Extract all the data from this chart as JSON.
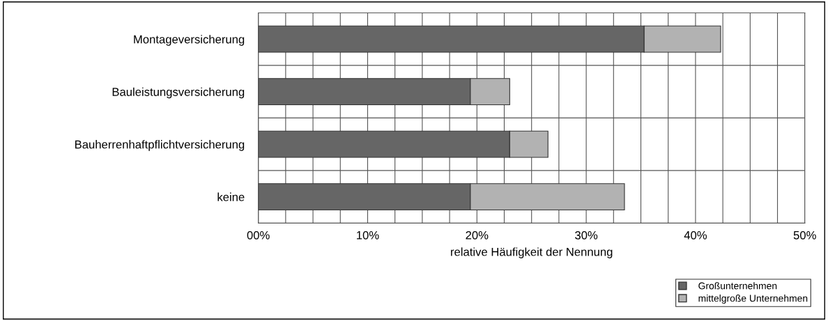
{
  "chart_data": {
    "type": "bar",
    "orientation": "horizontal",
    "stacked": true,
    "categories": [
      "Montageversicherung",
      "Bauleistungsversicherung",
      "Bauherrenhaftpflichtversicherung",
      "keine"
    ],
    "series": [
      {
        "name": "Großunternehmen",
        "color": "#666666",
        "values": [
          35.3,
          19.4,
          23.0,
          19.4
        ]
      },
      {
        "name": "mittelgroße Unternehmen",
        "color": "#b2b2b2",
        "values": [
          7.0,
          3.6,
          3.5,
          14.1
        ]
      }
    ],
    "xlabel": "relative Häufigkeit der Nennung",
    "xlim": [
      0,
      50
    ],
    "xticks": [
      {
        "value": 0,
        "label": "00%"
      },
      {
        "value": 2.5,
        "label": null
      },
      {
        "value": 5,
        "label": null
      },
      {
        "value": 7.5,
        "label": null
      },
      {
        "value": 10,
        "label": "10%"
      },
      {
        "value": 12.5,
        "label": null
      },
      {
        "value": 15,
        "label": null
      },
      {
        "value": 17.5,
        "label": null
      },
      {
        "value": 20,
        "label": "20%"
      },
      {
        "value": 22.5,
        "label": null
      },
      {
        "value": 25,
        "label": null
      },
      {
        "value": 27.5,
        "label": null
      },
      {
        "value": 30,
        "label": "30%"
      },
      {
        "value": 32.5,
        "label": null
      },
      {
        "value": 35,
        "label": null
      },
      {
        "value": 37.5,
        "label": null
      },
      {
        "value": 40,
        "label": "40%"
      },
      {
        "value": 42.5,
        "label": null
      },
      {
        "value": 45,
        "label": null
      },
      {
        "value": 47.5,
        "label": null
      },
      {
        "value": 50,
        "label": "50%"
      }
    ],
    "grid": true,
    "legend": "bottom right"
  }
}
